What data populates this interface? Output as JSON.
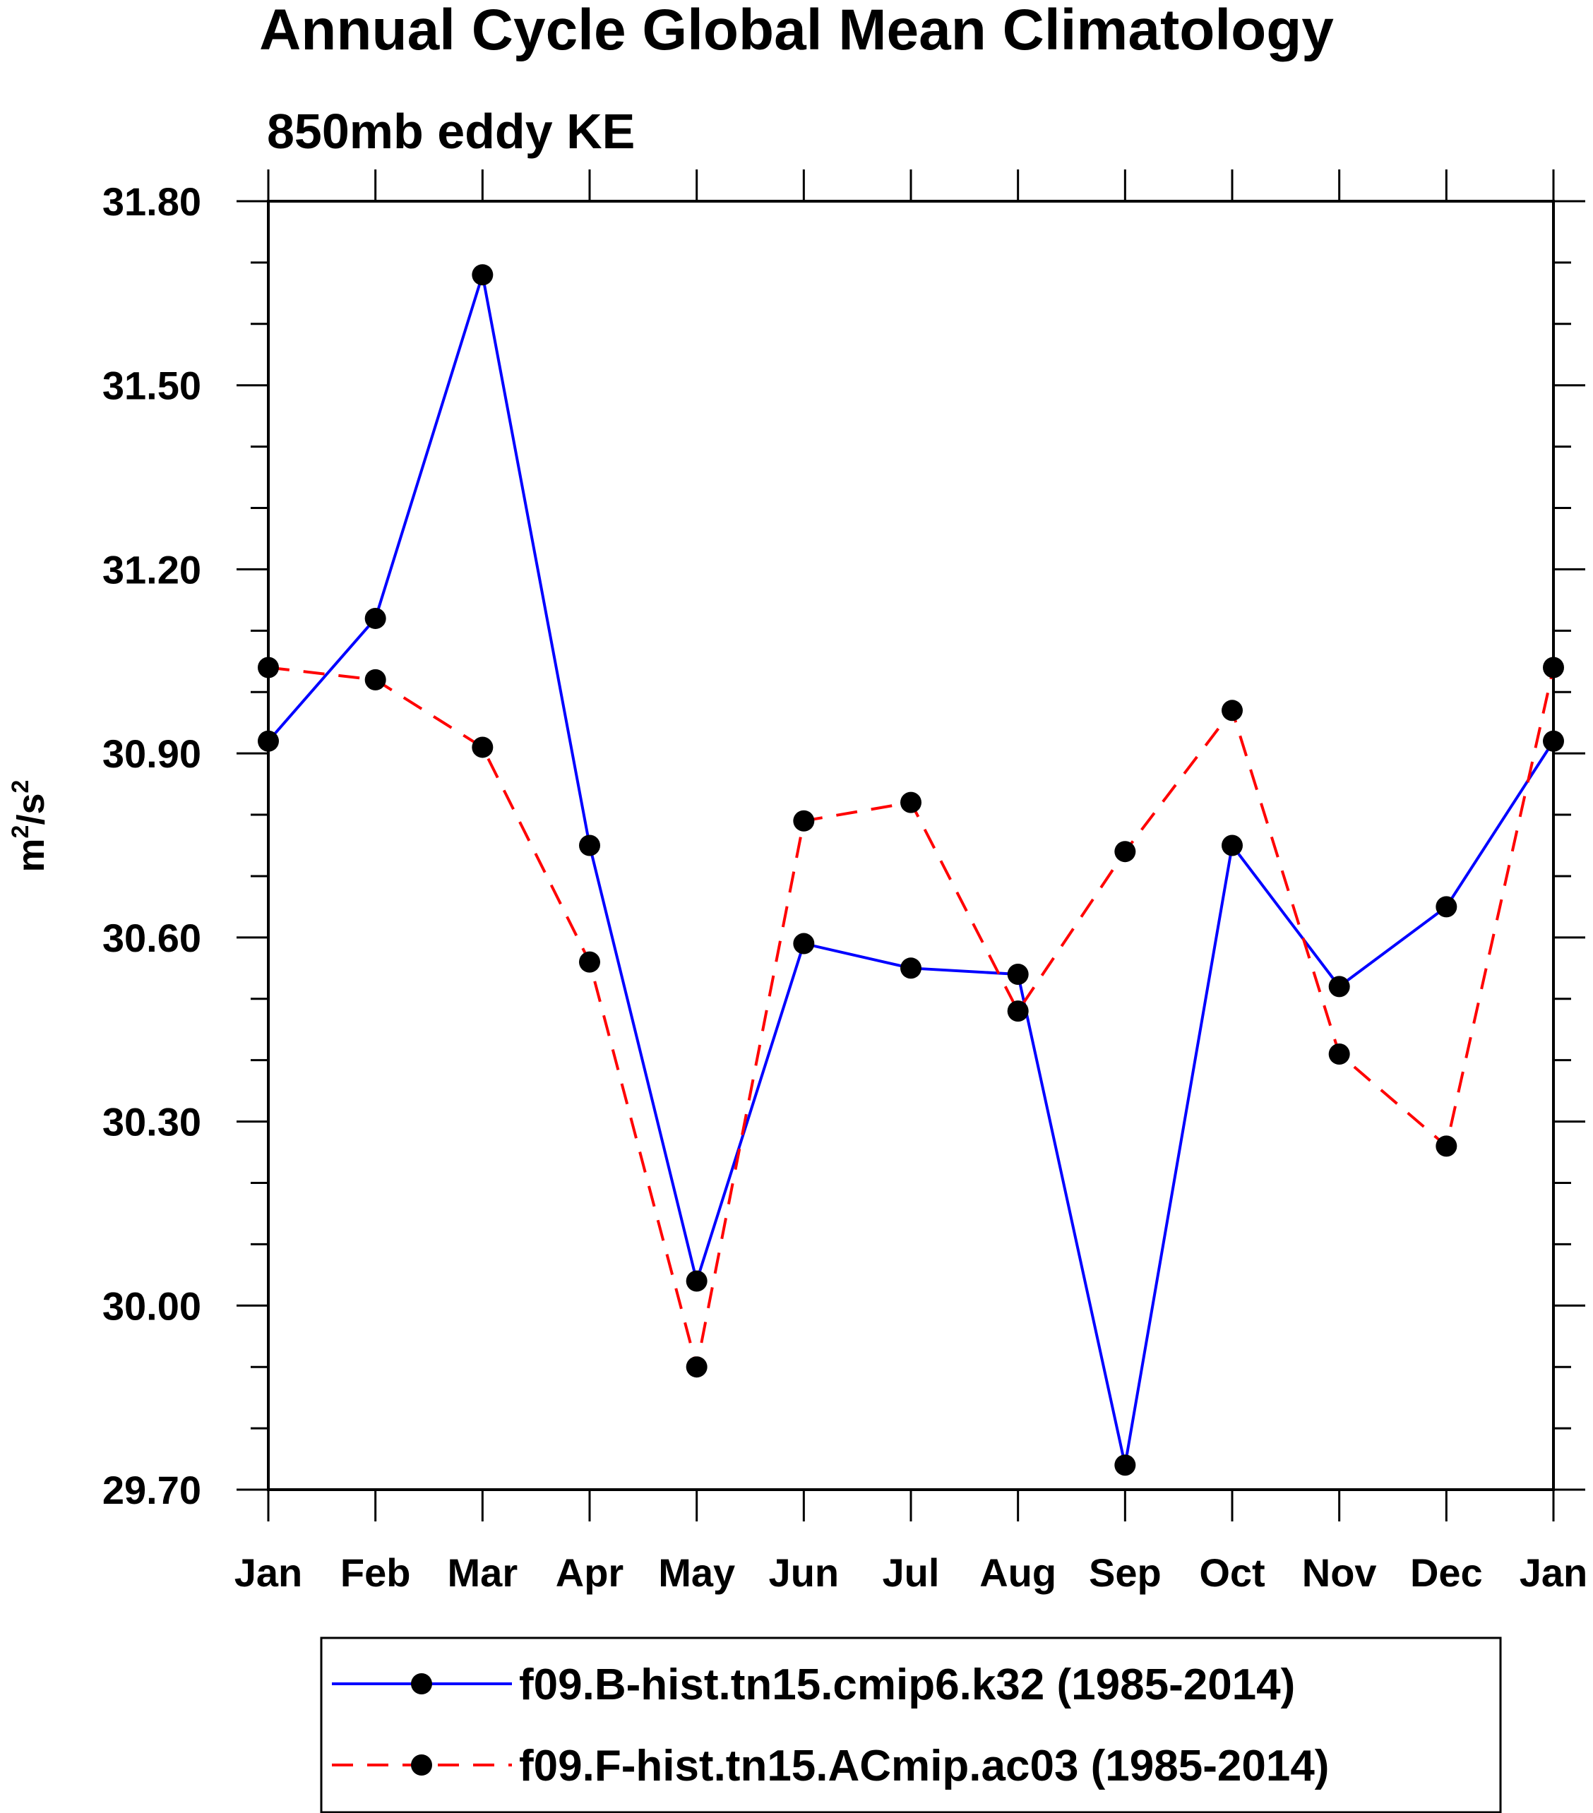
{
  "chart_data": {
    "type": "line",
    "title": "Annual Cycle Global Mean Climatology",
    "subtitle": "850mb eddy KE",
    "ylabel_base": "m",
    "ylabel_sup1": "2",
    "ylabel_mid": "/s",
    "ylabel_sup2": "2",
    "categories": [
      "Jan",
      "Feb",
      "Mar",
      "Apr",
      "May",
      "Jun",
      "Jul",
      "Aug",
      "Sep",
      "Oct",
      "Nov",
      "Dec",
      "Jan"
    ],
    "yticks": [
      "31.80",
      "31.50",
      "31.20",
      "30.90",
      "30.60",
      "30.30",
      "30.00",
      "29.70"
    ],
    "ylim": [
      29.7,
      31.8
    ],
    "grid": false,
    "legend_position": "bottom",
    "series": [
      {
        "name": "f09.B-hist.tn15.cmip6.k32 (1985-2014)",
        "color": "#0000ff",
        "dash": "solid",
        "values": [
          30.92,
          31.12,
          31.68,
          30.75,
          30.04,
          30.59,
          30.55,
          30.54,
          29.74,
          30.75,
          30.52,
          30.65,
          30.92
        ]
      },
      {
        "name": "f09.F-hist.tn15.ACmip.ac03 (1985-2014)",
        "color": "#ff0000",
        "dash": "dashed",
        "values": [
          31.04,
          31.02,
          30.91,
          30.56,
          29.9,
          30.79,
          30.82,
          30.48,
          30.74,
          30.97,
          30.41,
          30.26,
          31.04
        ]
      }
    ]
  }
}
